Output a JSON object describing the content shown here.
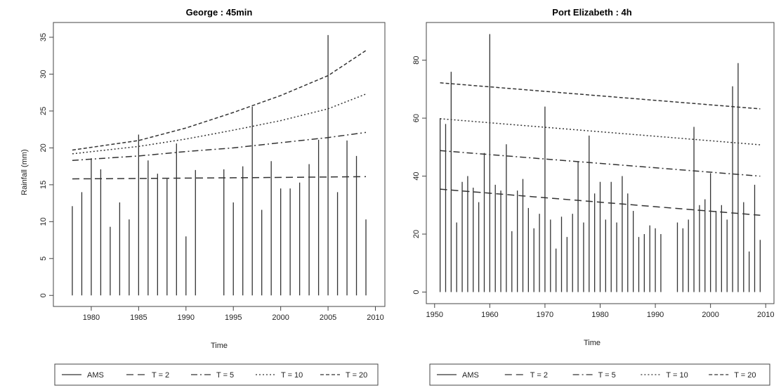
{
  "chart_data": [
    {
      "type": "line",
      "title": "George : 45min",
      "xlabel": "Time",
      "ylabel": "Rainfall (mm)",
      "xlim": [
        1976,
        2011
      ],
      "ylim": [
        -1.5,
        37
      ],
      "xticks": [
        1980,
        1985,
        1990,
        1995,
        2000,
        2005,
        2010
      ],
      "yticks": [
        0,
        5,
        10,
        15,
        20,
        25,
        30,
        35
      ],
      "ams": {
        "name": "AMS",
        "x": [
          1978,
          1979,
          1980,
          1981,
          1982,
          1983,
          1984,
          1985,
          1986,
          1987,
          1988,
          1989,
          1990,
          1991,
          1994,
          1995,
          1996,
          1997,
          1998,
          1999,
          2000,
          2001,
          2002,
          2003,
          2004,
          2005,
          2006,
          2007,
          2008,
          2009
        ],
        "y": [
          12.1,
          14.0,
          18.6,
          17.1,
          9.3,
          12.6,
          10.3,
          21.8,
          18.3,
          16.5,
          15.8,
          20.6,
          8.0,
          17.0,
          17.1,
          12.6,
          17.5,
          25.6,
          11.6,
          18.2,
          14.5,
          14.5,
          15.3,
          17.8,
          21.1,
          35.3,
          14.0,
          21.0,
          18.9,
          10.3
        ]
      },
      "series": [
        {
          "name": "T = 2",
          "x": [
            1978,
            1985,
            1990,
            1995,
            2000,
            2005,
            2009
          ],
          "y": [
            15.8,
            15.85,
            15.9,
            15.95,
            16.0,
            16.05,
            16.1
          ]
        },
        {
          "name": "T = 5",
          "x": [
            1978,
            1985,
            1990,
            1995,
            2000,
            2005,
            2009
          ],
          "y": [
            18.3,
            18.9,
            19.5,
            20.0,
            20.7,
            21.4,
            22.1
          ]
        },
        {
          "name": "T = 10",
          "x": [
            1978,
            1985,
            1990,
            1995,
            2000,
            2005,
            2009
          ],
          "y": [
            19.2,
            20.2,
            21.2,
            22.4,
            23.7,
            25.3,
            27.3
          ]
        },
        {
          "name": "T = 20",
          "x": [
            1978,
            1985,
            1990,
            1995,
            2000,
            2005,
            2009
          ],
          "y": [
            19.7,
            21.0,
            22.7,
            24.8,
            27.1,
            29.8,
            33.2
          ]
        }
      ]
    },
    {
      "type": "line",
      "title": "Port Elizabeth : 4h",
      "xlabel": "Time",
      "ylabel": "",
      "xlim": [
        1948.5,
        2011.5
      ],
      "ylim": [
        -4,
        93
      ],
      "xticks": [
        1950,
        1960,
        1970,
        1980,
        1990,
        2000,
        2010
      ],
      "yticks": [
        0,
        20,
        40,
        60,
        80
      ],
      "ams": {
        "name": "AMS",
        "x": [
          1951,
          1952,
          1953,
          1954,
          1955,
          1956,
          1957,
          1958,
          1959,
          1960,
          1961,
          1962,
          1963,
          1964,
          1965,
          1966,
          1967,
          1968,
          1969,
          1970,
          1971,
          1972,
          1973,
          1974,
          1975,
          1976,
          1977,
          1978,
          1979,
          1980,
          1981,
          1982,
          1983,
          1984,
          1985,
          1986,
          1987,
          1988,
          1989,
          1990,
          1991,
          1994,
          1995,
          1996,
          1997,
          1998,
          1999,
          2000,
          2001,
          2002,
          2003,
          2004,
          2005,
          2006,
          2007,
          2008,
          2009
        ],
        "y": [
          60,
          58,
          76,
          24,
          38,
          40,
          36,
          31,
          48,
          89,
          37,
          35,
          51,
          21,
          35,
          39,
          29,
          22,
          27,
          64,
          25,
          15,
          26,
          19,
          27,
          45,
          24,
          54,
          34,
          38,
          25,
          38,
          24,
          40,
          34,
          28,
          19,
          20,
          23,
          22,
          20,
          24,
          22,
          25,
          57,
          30,
          32,
          41,
          28,
          30,
          25,
          71,
          79,
          31,
          14,
          37,
          18
        ]
      },
      "series": [
        {
          "name": "T = 2",
          "x": [
            1951,
            2009
          ],
          "y": [
            35.5,
            26.5
          ]
        },
        {
          "name": "T = 5",
          "x": [
            1951,
            2009
          ],
          "y": [
            48.8,
            40.0
          ]
        },
        {
          "name": "T = 10",
          "x": [
            1951,
            2009
          ],
          "y": [
            59.8,
            50.8
          ]
        },
        {
          "name": "T = 20",
          "x": [
            1951,
            2009
          ],
          "y": [
            72.2,
            63.2
          ]
        }
      ]
    }
  ],
  "legend": {
    "entries": [
      "AMS",
      "T = 2",
      "T = 5",
      "T = 10",
      "T = 20"
    ]
  },
  "colors": {
    "line": "#333333",
    "axis": "#444444"
  }
}
